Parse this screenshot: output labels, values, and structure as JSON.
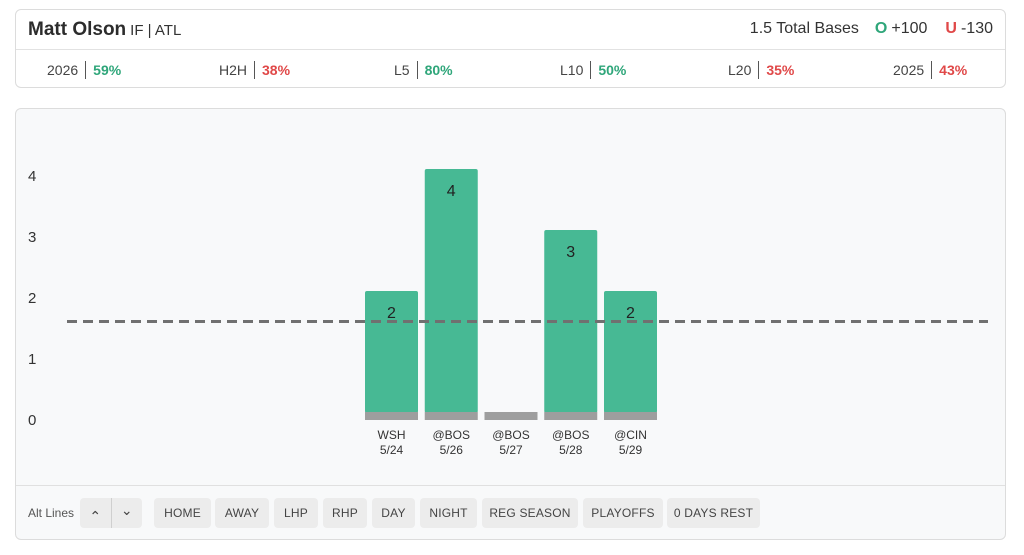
{
  "header": {
    "player_name": "Matt Olson",
    "player_meta": "IF | ATL",
    "prop_label": "1.5 Total Bases",
    "over_letter": "O",
    "over_odds": "+100",
    "under_letter": "U",
    "under_odds": "-130"
  },
  "stats": [
    {
      "label": "2026",
      "value": "59%",
      "status": "good"
    },
    {
      "label": "H2H",
      "value": "38%",
      "status": "bad"
    },
    {
      "label": "L5",
      "value": "80%",
      "status": "good"
    },
    {
      "label": "L10",
      "value": "50%",
      "status": "good"
    },
    {
      "label": "L20",
      "value": "35%",
      "status": "bad"
    },
    {
      "label": "2025",
      "value": "43%",
      "status": "bad"
    }
  ],
  "colors": {
    "bar": "#47b994",
    "bar_base": "#9e9e9e",
    "line": "#707070",
    "good": "#2fa67a",
    "bad": "#e04848"
  },
  "chart_data": {
    "type": "bar",
    "categories": [
      "WSH 5/24",
      "@BOS 5/26",
      "@BOS 5/27",
      "@BOS 5/28",
      "@CIN 5/29"
    ],
    "opponents": [
      "WSH",
      "@BOS",
      "@BOS",
      "@BOS",
      "@CIN"
    ],
    "dates": [
      "5/24",
      "5/26",
      "5/27",
      "5/28",
      "5/29"
    ],
    "values": [
      2,
      4,
      0,
      3,
      2
    ],
    "value_labels": [
      "2",
      "4",
      "",
      "3",
      "2"
    ],
    "line": 1.5,
    "yticks": [
      "0",
      "1",
      "2",
      "3",
      "4"
    ],
    "ylim": [
      0,
      4
    ]
  },
  "filters": {
    "alt_label": "Alt Lines",
    "alt_up": "⌃",
    "alt_down": "⌄",
    "buttons": [
      "HOME",
      "AWAY",
      "LHP",
      "RHP",
      "DAY",
      "NIGHT",
      "REG SEASON",
      "PLAYOFFS",
      "0 DAYS REST"
    ]
  }
}
